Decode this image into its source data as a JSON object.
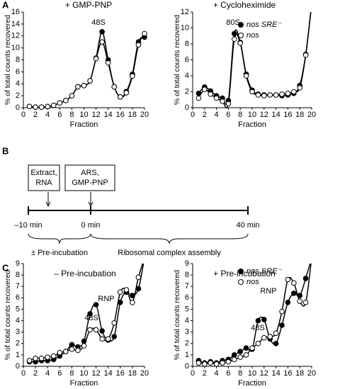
{
  "panels": [
    "A",
    "B",
    "C"
  ],
  "chart_data": [
    {
      "type": "line",
      "title": "+ GMP-PNP",
      "xlabel": "Fraction",
      "ylabel": "% of total counts recovered",
      "annotations": [
        "48S"
      ],
      "legend": false,
      "x": [
        1,
        2,
        3,
        4,
        5,
        6,
        7,
        8,
        9,
        10,
        11,
        12,
        13,
        14,
        15,
        16,
        17,
        18,
        19,
        20
      ],
      "xlim": [
        0,
        20
      ],
      "xticks": [
        0,
        2,
        4,
        6,
        8,
        10,
        12,
        14,
        16,
        18,
        20
      ],
      "ylim": [
        0,
        16
      ],
      "yticks": [
        0,
        2,
        4,
        6,
        8,
        10,
        12,
        14,
        16
      ],
      "series": [
        {
          "name": "nos SRE⁻",
          "color": "#000000",
          "marker": "filled",
          "values": [
            0.2,
            0.1,
            0.1,
            0.2,
            0.4,
            0.8,
            1.2,
            2,
            3.5,
            3.7,
            4.5,
            8.3,
            12.7,
            8,
            3.5,
            1.8,
            2.7,
            5.6,
            11,
            11.8
          ]
        },
        {
          "name": "nos",
          "color": "#000000",
          "marker": "open",
          "values": [
            0.2,
            0.1,
            0.1,
            0.2,
            0.4,
            0.8,
            1.2,
            2,
            3.5,
            3.7,
            4.5,
            8.2,
            11,
            7.5,
            3.5,
            1.8,
            2.5,
            5.3,
            10.5,
            12.4
          ]
        }
      ]
    },
    {
      "type": "line",
      "title": "+ Cycloheximide",
      "xlabel": "Fraction",
      "ylabel": "% of total counts recovered",
      "annotations": [
        "80S"
      ],
      "legend": true,
      "legend_loc": "upper right",
      "x": [
        1,
        2,
        3,
        4,
        5,
        6,
        7,
        8,
        9,
        10,
        11,
        12,
        13,
        14,
        15,
        16,
        17,
        18,
        19,
        20
      ],
      "xlim": [
        0,
        20
      ],
      "xticks": [
        0,
        2,
        4,
        6,
        8,
        10,
        12,
        14,
        16,
        18,
        20
      ],
      "ylim": [
        0,
        12
      ],
      "yticks": [
        0,
        2,
        4,
        6,
        8,
        10,
        12
      ],
      "series": [
        {
          "name": "nos SRE⁻",
          "color": "#000000",
          "marker": "filled",
          "values": [
            1.8,
            2.6,
            2.1,
            1.5,
            1.2,
            0.9,
            9.3,
            8.2,
            4.2,
            2.2,
            1.7,
            1.6,
            1.6,
            1.6,
            1.5,
            1.6,
            1.8,
            2.8,
            6.7,
            13
          ]
        },
        {
          "name": "nos",
          "color": "#000000",
          "marker": "open",
          "values": [
            1.2,
            2.3,
            1.7,
            1.2,
            0.8,
            0.5,
            8.6,
            8.1,
            4,
            2,
            1.6,
            1.5,
            1.6,
            1.6,
            1.7,
            1.8,
            2,
            2.5,
            6.6,
            13
          ]
        }
      ]
    },
    {
      "type": "line",
      "title": "– Pre-incubation",
      "xlabel": "Fraction",
      "ylabel": "% of total counts recovered",
      "annotations": [
        "48S",
        "RNP"
      ],
      "legend": false,
      "x": [
        1,
        2,
        3,
        4,
        5,
        6,
        7,
        8,
        9,
        10,
        11,
        12,
        13,
        14,
        15,
        16,
        17,
        18,
        19,
        20
      ],
      "xlim": [
        0,
        20
      ],
      "xticks": [
        0,
        2,
        4,
        6,
        8,
        10,
        12,
        14,
        16,
        18,
        20
      ],
      "ylim": [
        0,
        9
      ],
      "yticks": [
        0,
        1,
        2,
        3,
        4,
        5,
        6,
        7,
        8,
        9
      ],
      "series": [
        {
          "name": "nos SRE⁻",
          "color": "#000000",
          "marker": "filled",
          "values": [
            0.4,
            0.4,
            0.5,
            0.5,
            0.6,
            0.9,
            1.3,
            1.9,
            1.7,
            2.2,
            4.6,
            5.4,
            3.1,
            2.3,
            2.6,
            5.6,
            6.5,
            6.2,
            6.8,
            9.5
          ]
        },
        {
          "name": "nos",
          "color": "#000000",
          "marker": "open",
          "values": [
            0.5,
            0.7,
            0.7,
            0.8,
            0.9,
            1.2,
            1.3,
            1.5,
            1.4,
            1.8,
            3.2,
            3.2,
            2.4,
            2.4,
            3.8,
            6.5,
            6.7,
            5.6,
            7.8,
            9.5
          ]
        }
      ]
    },
    {
      "type": "line",
      "title": "+ Pre-incubation",
      "xlabel": "Fraction",
      "ylabel": "% of total counts recovered",
      "annotations": [
        "48S",
        "RNP"
      ],
      "legend": true,
      "legend_loc": "upper right",
      "x": [
        1,
        2,
        3,
        4,
        5,
        6,
        7,
        8,
        9,
        10,
        11,
        12,
        13,
        14,
        15,
        16,
        17,
        18,
        19,
        20
      ],
      "xlim": [
        0,
        20
      ],
      "xticks": [
        0,
        2,
        4,
        6,
        8,
        10,
        12,
        14,
        16,
        18,
        20
      ],
      "ylim": [
        0,
        9
      ],
      "yticks": [
        0,
        1,
        2,
        3,
        4,
        5,
        6,
        7,
        8,
        9
      ],
      "series": [
        {
          "name": "nos SRE⁻",
          "color": "#000000",
          "marker": "filled",
          "values": [
            0.5,
            0.3,
            0.4,
            0.3,
            0.5,
            0.6,
            1,
            1.3,
            1.6,
            1.5,
            4,
            4.1,
            2.4,
            2,
            3.6,
            5.6,
            6.4,
            6.2,
            7.7,
            9.5
          ]
        },
        {
          "name": "nos",
          "color": "#000000",
          "marker": "open",
          "values": [
            0.3,
            0.2,
            0.3,
            0.2,
            0.3,
            0.4,
            0.6,
            0.8,
            1,
            1.6,
            2,
            2.5,
            2.6,
            2.9,
            4.8,
            7.6,
            7.3,
            5.7,
            5.6,
            9.5
          ]
        }
      ]
    }
  ],
  "timeline": {
    "boxes": [
      [
        "Extract,",
        "RNA"
      ],
      [
        "ARS,",
        "GMP-PNP"
      ]
    ],
    "times": [
      "–10 min",
      "0 min",
      "40 min"
    ],
    "phases": [
      "± Pre-incubation",
      "Ribosomal complex assembly"
    ]
  }
}
